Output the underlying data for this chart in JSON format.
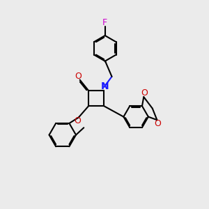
{
  "bg_color": "#ebebeb",
  "bond_color": "#000000",
  "N_color": "#1a1aff",
  "O_color": "#cc0000",
  "F_color": "#cc00cc",
  "lw": 1.5,
  "fs": 9.0,
  "dpi": 100,
  "figsize": [
    3.0,
    3.0
  ],
  "xlim": [
    0,
    10
  ],
  "ylim": [
    0,
    10
  ]
}
